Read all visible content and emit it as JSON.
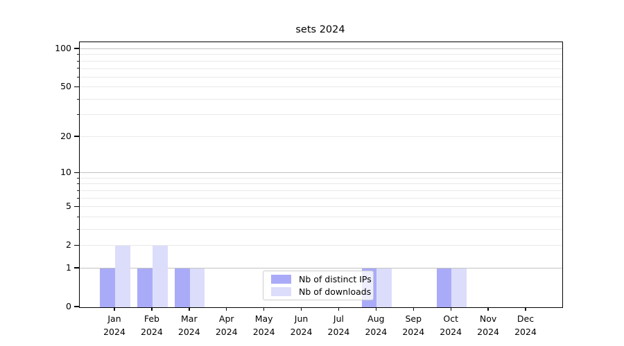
{
  "chart_data": {
    "type": "bar",
    "title": "sets 2024",
    "categories": [
      "Jan",
      "Feb",
      "Mar",
      "Apr",
      "May",
      "Jun",
      "Jul",
      "Aug",
      "Sep",
      "Oct",
      "Nov",
      "Dec"
    ],
    "category_year": "2024",
    "series": [
      {
        "name": "Nb of distinct IPs",
        "color": "#aaabf8",
        "values": [
          1,
          1,
          1,
          0,
          0,
          0,
          0,
          1,
          0,
          1,
          0,
          0
        ]
      },
      {
        "name": "Nb of downloads",
        "color": "#dcddfb",
        "values": [
          2,
          2,
          1,
          0,
          0,
          0,
          0,
          1,
          0,
          1,
          0,
          0
        ]
      }
    ],
    "yscale": "log1p",
    "ylim": [
      0,
      113
    ],
    "y_major_ticks": [
      0,
      1,
      2,
      5,
      10,
      20,
      50,
      100
    ],
    "y_minor_ticks": [
      3,
      4,
      6,
      7,
      8,
      9,
      30,
      40,
      60,
      70,
      80,
      90
    ],
    "grid": "horizontal",
    "legend_position": "lower-center-inside"
  },
  "style": {
    "grid_decade_color": "#c2c2c2",
    "grid_minor_color": "#e9e9e9",
    "spine_color": "#000000"
  }
}
